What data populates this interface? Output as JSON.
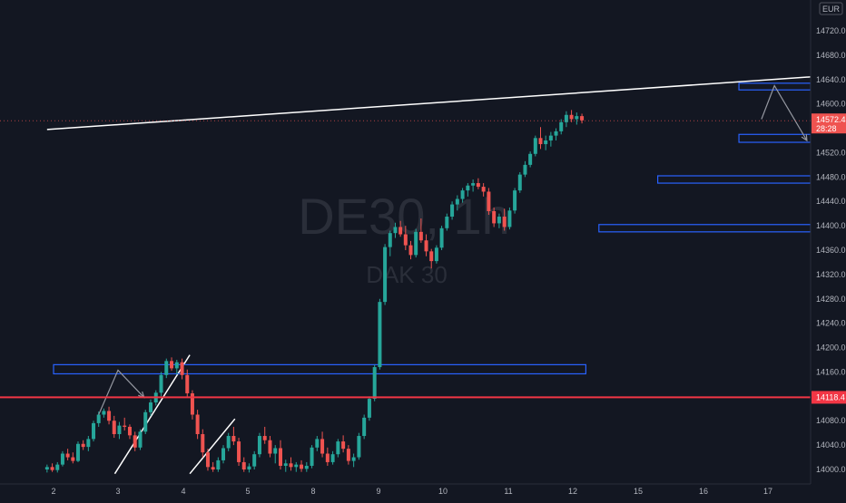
{
  "chart_data": {
    "type": "candlestick",
    "symbol_watermark": "DE30, 1h",
    "name_watermark": "DAK 30",
    "currency": "EUR",
    "ylim": [
      13990,
      14745
    ],
    "y_ticks": [
      14720,
      14680,
      14640,
      14600,
      14560,
      14520,
      14480,
      14440,
      14400,
      14360,
      14320,
      14280,
      14240,
      14200,
      14160,
      14120,
      14080,
      14040,
      14000
    ],
    "y_tick_labels": [
      "14720.0",
      "14680.0",
      "14640.0",
      "14600.0",
      "14560.0",
      "14520.0",
      "14480.0",
      "14440.0",
      "14400.0",
      "14360.0",
      "14320.0",
      "14280.0",
      "14240.0",
      "14200.0",
      "14160.0",
      "14120.0",
      "14080.0",
      "14040.0",
      "14000.0"
    ],
    "x_ticks": [
      2,
      3,
      4,
      5,
      8,
      9,
      10,
      11,
      12,
      15,
      16,
      17
    ],
    "x_tick_labels": [
      "2",
      "3",
      "4",
      "5",
      "8",
      "9",
      "10",
      "11",
      "12",
      "15",
      "16",
      "17"
    ],
    "last_price": {
      "value": 14572.4,
      "label": "14572.4",
      "countdown": "28:28"
    },
    "support_level": {
      "value": 14118.4,
      "label": "14118.4"
    },
    "zones": [
      {
        "x0": 0,
        "x1": 8.2,
        "y_top": 14172,
        "y_bottom": 14157
      },
      {
        "x0": 8.4,
        "x1": 17.6,
        "y_top": 14402,
        "y_bottom": 14390
      },
      {
        "x0": 9.3,
        "x1": 17.6,
        "y_top": 14482,
        "y_bottom": 14470
      },
      {
        "x0": 10.55,
        "x1": 17.6,
        "y_top": 14550,
        "y_bottom": 14537
      },
      {
        "x0": 10.55,
        "x1": 17.6,
        "y_top": 14634,
        "y_bottom": 14623
      }
    ],
    "trendlines": [
      {
        "x0": -0.1,
        "y0": 14558,
        "x1": 17.6,
        "y1": 14688
      },
      {
        "x0": 0.95,
        "y0": 13993,
        "x1": 2.1,
        "y1": 14188
      },
      {
        "x0": 2.1,
        "y0": 13993,
        "x1": 2.8,
        "y1": 14083
      }
    ],
    "arrows": [
      {
        "points": [
          [
            0.7,
            14090
          ],
          [
            1.0,
            14163
          ],
          [
            1.4,
            14118
          ]
        ]
      },
      {
        "points": [
          [
            10.9,
            14575
          ],
          [
            11.1,
            14630
          ],
          [
            11.6,
            14540
          ]
        ]
      }
    ],
    "candles": [
      [
        -0.1,
        14000,
        14008,
        13995,
        14004
      ],
      [
        -0.02,
        14004,
        14010,
        13996,
        13999
      ],
      [
        0.06,
        13999,
        14012,
        13995,
        14008
      ],
      [
        0.14,
        14008,
        14030,
        14005,
        14026
      ],
      [
        0.22,
        14026,
        14034,
        14015,
        14020
      ],
      [
        0.3,
        14020,
        14028,
        14010,
        14014
      ],
      [
        0.38,
        14014,
        14046,
        14012,
        14042
      ],
      [
        0.46,
        14042,
        14048,
        14032,
        14037
      ],
      [
        0.54,
        14037,
        14055,
        14030,
        14050
      ],
      [
        0.62,
        14050,
        14080,
        14046,
        14076
      ],
      [
        0.7,
        14076,
        14095,
        14070,
        14090
      ],
      [
        0.78,
        14090,
        14100,
        14085,
        14096
      ],
      [
        0.86,
        14096,
        14103,
        14074,
        14080
      ],
      [
        0.94,
        14080,
        14088,
        14052,
        14058
      ],
      [
        1.02,
        14058,
        14078,
        14050,
        14072
      ],
      [
        1.1,
        14072,
        14085,
        14064,
        14070
      ],
      [
        1.18,
        14070,
        14074,
        14050,
        14056
      ],
      [
        1.26,
        14056,
        14062,
        14030,
        14036
      ],
      [
        1.34,
        14036,
        14066,
        14032,
        14062
      ],
      [
        1.42,
        14062,
        14098,
        14058,
        14094
      ],
      [
        1.5,
        14094,
        14115,
        14088,
        14110
      ],
      [
        1.58,
        14110,
        14130,
        14105,
        14126
      ],
      [
        1.66,
        14126,
        14160,
        14120,
        14155
      ],
      [
        1.74,
        14155,
        14182,
        14150,
        14178
      ],
      [
        1.82,
        14178,
        14184,
        14162,
        14166
      ],
      [
        1.9,
        14166,
        14180,
        14156,
        14176
      ],
      [
        1.98,
        14176,
        14182,
        14148,
        14155
      ],
      [
        2.06,
        14155,
        14164,
        14118,
        14125
      ],
      [
        2.14,
        14125,
        14130,
        14082,
        14090
      ],
      [
        2.22,
        14090,
        14098,
        14050,
        14058
      ],
      [
        2.3,
        14058,
        14066,
        14020,
        14028
      ],
      [
        2.38,
        14028,
        14034,
        13998,
        14004
      ],
      [
        2.46,
        14004,
        14012,
        13996,
        14000
      ],
      [
        2.54,
        14000,
        14020,
        13996,
        14015
      ],
      [
        2.62,
        14015,
        14040,
        14010,
        14035
      ],
      [
        2.7,
        14035,
        14060,
        14030,
        14055
      ],
      [
        2.78,
        14055,
        14070,
        14040,
        14046
      ],
      [
        2.86,
        14046,
        14052,
        14006,
        14012
      ],
      [
        2.94,
        14012,
        14020,
        13996,
        14000
      ],
      [
        3.02,
        14000,
        14010,
        13995,
        14005
      ],
      [
        3.1,
        14005,
        14030,
        14000,
        14025
      ],
      [
        3.18,
        14025,
        14060,
        14020,
        14055
      ],
      [
        3.26,
        14055,
        14070,
        14042,
        14048
      ],
      [
        3.34,
        14048,
        14055,
        14020,
        14026
      ],
      [
        3.42,
        14026,
        14040,
        14010,
        14035
      ],
      [
        3.5,
        14035,
        14048,
        14000,
        14006
      ],
      [
        3.58,
        14006,
        14016,
        13996,
        14010
      ],
      [
        3.66,
        14010,
        14020,
        13998,
        14004
      ],
      [
        3.74,
        14004,
        14012,
        13996,
        14008
      ],
      [
        3.82,
        14008,
        14015,
        13996,
        14001
      ],
      [
        3.9,
        14001,
        14012,
        13996,
        14006
      ],
      [
        3.98,
        14006,
        14040,
        14002,
        14036
      ],
      [
        4.06,
        14036,
        14055,
        14030,
        14050
      ],
      [
        4.14,
        14050,
        14062,
        14020,
        14026
      ],
      [
        4.22,
        14026,
        14036,
        14006,
        14012
      ],
      [
        4.3,
        14012,
        14030,
        14008,
        14025
      ],
      [
        4.38,
        14025,
        14050,
        14020,
        14046
      ],
      [
        4.46,
        14046,
        14056,
        14028,
        14034
      ],
      [
        4.54,
        14034,
        14040,
        14008,
        14014
      ],
      [
        4.62,
        14014,
        14026,
        14004,
        14020
      ],
      [
        4.7,
        14020,
        14060,
        14016,
        14055
      ],
      [
        4.78,
        14055,
        14090,
        14050,
        14085
      ],
      [
        4.86,
        14085,
        14120,
        14080,
        14116
      ],
      [
        4.94,
        14116,
        14172,
        14112,
        14168
      ],
      [
        5.02,
        14168,
        14280,
        14164,
        14275
      ],
      [
        5.1,
        14275,
        14370,
        14270,
        14365
      ],
      [
        5.18,
        14365,
        14392,
        14350,
        14388
      ],
      [
        5.26,
        14388,
        14405,
        14380,
        14398
      ],
      [
        5.34,
        14398,
        14408,
        14382,
        14386
      ],
      [
        5.42,
        14386,
        14400,
        14360,
        14368
      ],
      [
        5.5,
        14368,
        14375,
        14345,
        14352
      ],
      [
        5.58,
        14352,
        14395,
        14348,
        14390
      ],
      [
        5.66,
        14390,
        14412,
        14372,
        14376
      ],
      [
        5.74,
        14376,
        14386,
        14350,
        14358
      ],
      [
        5.82,
        14358,
        14362,
        14330,
        14342
      ],
      [
        5.9,
        14342,
        14368,
        14338,
        14364
      ],
      [
        5.98,
        14364,
        14400,
        14360,
        14396
      ],
      [
        6.06,
        14396,
        14420,
        14392,
        14415
      ],
      [
        6.14,
        14415,
        14440,
        14410,
        14435
      ],
      [
        6.22,
        14435,
        14450,
        14425,
        14444
      ],
      [
        6.3,
        14444,
        14462,
        14438,
        14458
      ],
      [
        6.38,
        14458,
        14470,
        14448,
        14466
      ],
      [
        6.46,
        14466,
        14476,
        14456,
        14470
      ],
      [
        6.54,
        14470,
        14478,
        14460,
        14464
      ],
      [
        6.62,
        14464,
        14470,
        14448,
        14456
      ],
      [
        6.7,
        14456,
        14462,
        14418,
        14424
      ],
      [
        6.78,
        14424,
        14430,
        14398,
        14404
      ],
      [
        6.86,
        14404,
        14420,
        14396,
        14415
      ],
      [
        6.94,
        14415,
        14428,
        14392,
        14398
      ],
      [
        7.02,
        14398,
        14430,
        14394,
        14425
      ],
      [
        7.1,
        14425,
        14462,
        14420,
        14458
      ],
      [
        7.18,
        14458,
        14488,
        14454,
        14484
      ],
      [
        7.26,
        14484,
        14506,
        14480,
        14500
      ],
      [
        7.34,
        14500,
        14522,
        14496,
        14518
      ],
      [
        7.42,
        14518,
        14548,
        14514,
        14544
      ],
      [
        7.5,
        14544,
        14562,
        14526,
        14534
      ],
      [
        7.58,
        14534,
        14548,
        14524,
        14540
      ],
      [
        7.66,
        14540,
        14554,
        14530,
        14548
      ],
      [
        7.74,
        14548,
        14560,
        14540,
        14555
      ],
      [
        7.82,
        14555,
        14575,
        14550,
        14570
      ],
      [
        7.9,
        14570,
        14588,
        14562,
        14582
      ],
      [
        7.98,
        14582,
        14590,
        14570,
        14575
      ],
      [
        8.06,
        14575,
        14586,
        14566,
        14580
      ],
      [
        8.14,
        14580,
        14584,
        14568,
        14573
      ]
    ]
  }
}
